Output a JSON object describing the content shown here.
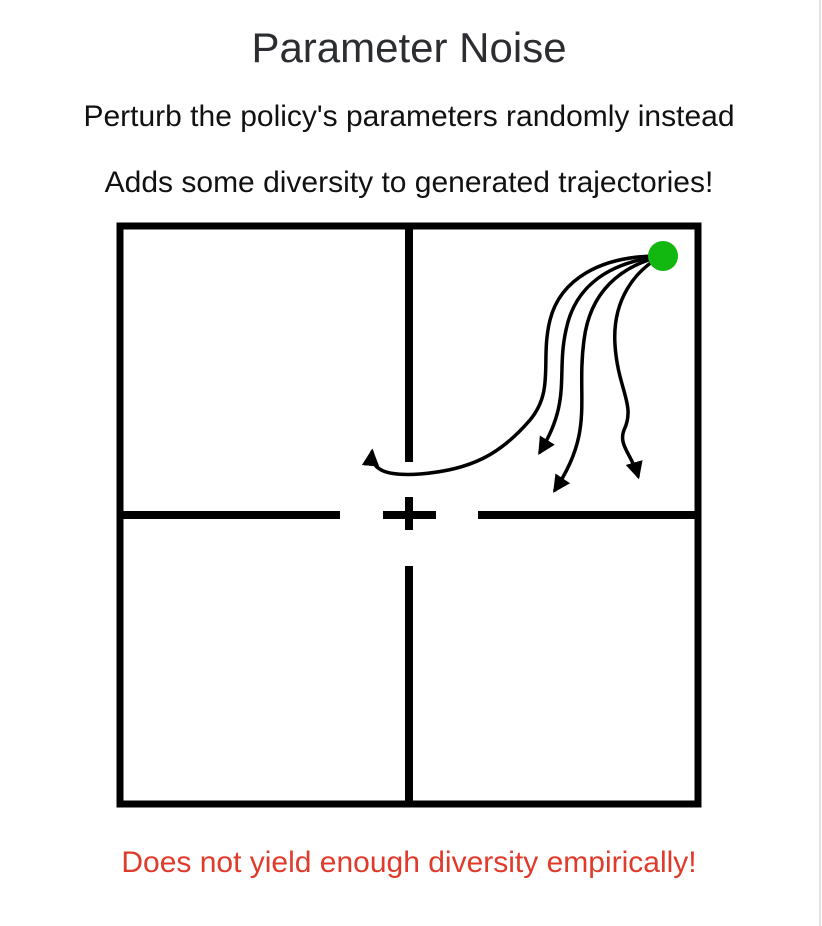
{
  "slide": {
    "title": "Parameter Noise",
    "line1": "Perturb the policy's parameters randomly instead",
    "line2": "Adds some diversity to generated trajectories!",
    "footer": "Does not yield enough diversity empirically!"
  },
  "colors": {
    "title": "#2b2d31",
    "text": "#111111",
    "footer": "#e03a2b",
    "agent": "#12b80f",
    "walls": "#000000"
  },
  "diagram": {
    "rooms": 4,
    "agent_marker": "green-circle",
    "trajectory_count": 4
  }
}
